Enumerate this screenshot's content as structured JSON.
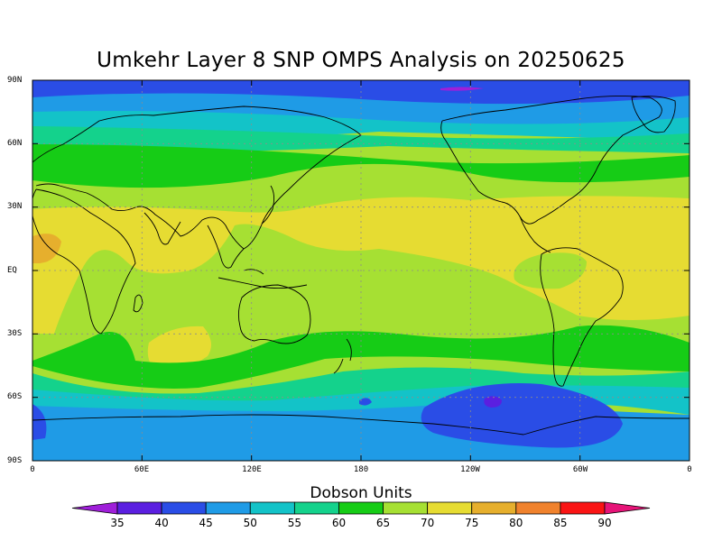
{
  "title": "Umkehr Layer 8 SNP OMPS Analysis on 20250625",
  "lat_labels": [
    "90N",
    "60N",
    "30N",
    "EQ",
    "30S",
    "60S",
    "90S"
  ],
  "lon_labels": [
    "0",
    "60E",
    "120E",
    "180",
    "120W",
    "60W",
    "0"
  ],
  "colorbar": {
    "title": "Dobson Units",
    "ticks": [
      "35",
      "40",
      "45",
      "50",
      "55",
      "60",
      "65",
      "70",
      "75",
      "80",
      "85",
      "90"
    ],
    "colors": [
      "#9f1fd9",
      "#5b1fe0",
      "#2a4de6",
      "#1f9be6",
      "#13c3c8",
      "#14d28c",
      "#16cc16",
      "#a6e033",
      "#e6dc32",
      "#e6af2d",
      "#f0822d",
      "#fa1414",
      "#e61478"
    ]
  },
  "map": {
    "projection": "cylindrical equidistant",
    "grid": true,
    "coastlines": true,
    "background_color": "#a6e033"
  }
}
